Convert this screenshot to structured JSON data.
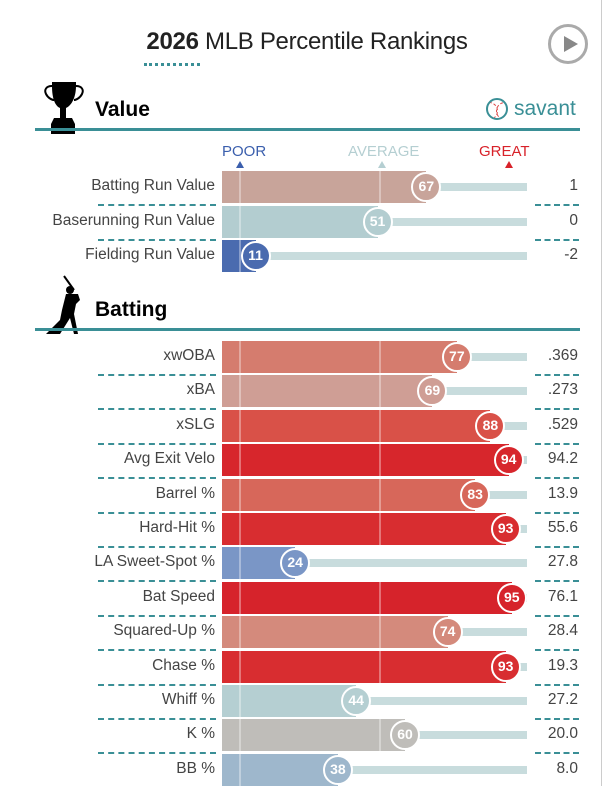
{
  "title": {
    "year": "2026",
    "rest": "MLB Percentile Rankings"
  },
  "brand": "savant",
  "scale": {
    "poor": "POOR",
    "average": "AVERAGE",
    "great": "GREAT",
    "poor_color": "#3b5fad",
    "average_color": "#b5cfd2",
    "great_color": "#d8222a"
  },
  "chart_data": {
    "type": "bar",
    "title": "2026 MLB Percentile Rankings",
    "xlim": [
      0,
      100
    ],
    "sections": [
      {
        "name": "Value",
        "rows": [
          {
            "label": "Batting Run Value",
            "percentile": 67,
            "value": "1",
            "color": "#c8a49a"
          },
          {
            "label": "Baserunning Run Value",
            "percentile": 51,
            "value": "0",
            "color": "#b3cdd0"
          },
          {
            "label": "Fielding Run Value",
            "percentile": 11,
            "value": "-2",
            "color": "#4a6baf"
          }
        ]
      },
      {
        "name": "Batting",
        "rows": [
          {
            "label": "xwOBA",
            "percentile": 77,
            "value": ".369",
            "color": "#d57c6e"
          },
          {
            "label": "xBA",
            "percentile": 69,
            "value": ".273",
            "color": "#cf9e95"
          },
          {
            "label": "xSLG",
            "percentile": 88,
            "value": ".529",
            "color": "#d95148"
          },
          {
            "label": "Avg Exit Velo",
            "percentile": 94,
            "value": "94.2",
            "color": "#d7262c"
          },
          {
            "label": "Barrel %",
            "percentile": 83,
            "value": "13.9",
            "color": "#d7675a"
          },
          {
            "label": "Hard-Hit %",
            "percentile": 93,
            "value": "55.6",
            "color": "#d82d30"
          },
          {
            "label": "LA Sweet-Spot %",
            "percentile": 24,
            "value": "27.8",
            "color": "#7a96c6"
          },
          {
            "label": "Bat Speed",
            "percentile": 95,
            "value": "76.1",
            "color": "#d6232b"
          },
          {
            "label": "Squared-Up %",
            "percentile": 74,
            "value": "28.4",
            "color": "#d48a7c"
          },
          {
            "label": "Chase %",
            "percentile": 93,
            "value": "19.3",
            "color": "#d82d30"
          },
          {
            "label": "Whiff %",
            "percentile": 44,
            "value": "27.2",
            "color": "#b5cfd2"
          },
          {
            "label": "K %",
            "percentile": 60,
            "value": "20.0",
            "color": "#bfbdb9"
          },
          {
            "label": "BB %",
            "percentile": 38,
            "value": "8.0",
            "color": "#9eb7cc"
          }
        ]
      }
    ]
  }
}
